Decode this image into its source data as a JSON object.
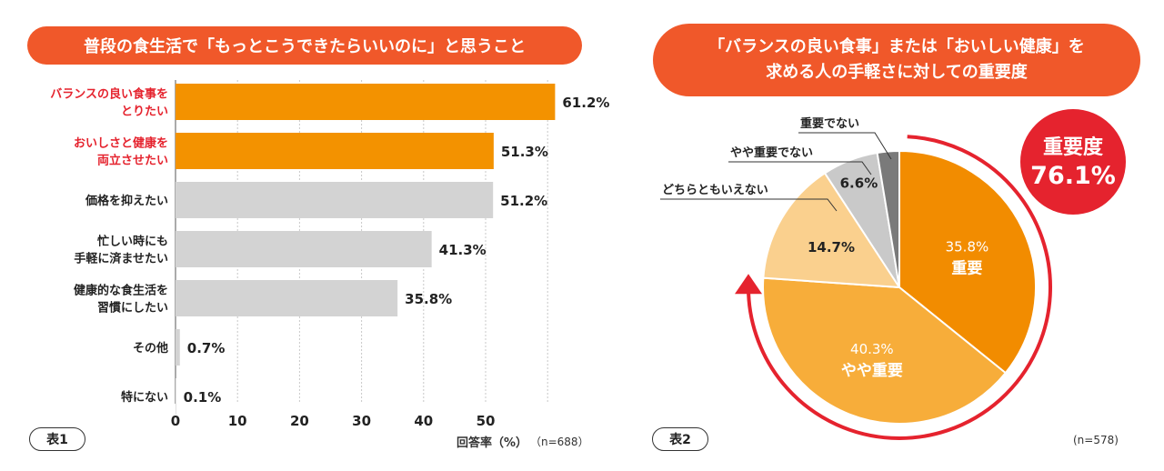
{
  "chart_data": [
    {
      "type": "bar",
      "orientation": "horizontal",
      "title": "普段の食生活で「もっとこうできたらいいのに」と思うこと",
      "categories": [
        [
          "バランスの良い食事を",
          "とりたい"
        ],
        [
          "おいしさと健康を",
          "両立させたい"
        ],
        [
          "価格を抑えたい"
        ],
        [
          "忙しい時にも",
          "手軽に済ませたい"
        ],
        [
          "健康的な食生活を",
          "習慣にしたい"
        ],
        [
          "その他"
        ],
        [
          "特にない"
        ]
      ],
      "values": [
        61.2,
        51.3,
        51.2,
        41.3,
        35.8,
        0.7,
        0.1
      ],
      "value_labels": [
        "61.2%",
        "51.3%",
        "51.2%",
        "41.3%",
        "35.8%",
        "0.7%",
        "0.1%"
      ],
      "highlighted": [
        true,
        true,
        false,
        false,
        false,
        false,
        false
      ],
      "xticks": [
        "0",
        "10",
        "20",
        "30",
        "40",
        "50"
      ],
      "xlim": [
        0,
        60
      ],
      "xlabel": "回答率（%）",
      "sample": "（n=688）",
      "table_tag": "表1",
      "colors": {
        "highlight": "#f39200",
        "normal": "#d3d3d3",
        "highlight_text": "#e5232e"
      }
    },
    {
      "type": "pie",
      "title": [
        "「バランスの良い食事」または「おいしい健康」を",
        "求める人の手軽さに対しての重要度"
      ],
      "slices": [
        {
          "label": "重要",
          "value": 35.8,
          "value_text": "35.8%",
          "color": "#f28c00"
        },
        {
          "label": "やや重要",
          "value": 40.3,
          "value_text": "40.3%",
          "color": "#f7ad3a"
        },
        {
          "label": "どちらともいえない",
          "value": 14.7,
          "value_text": "14.7%",
          "color": "#fad08e"
        },
        {
          "label": "やや重要でない",
          "value": 6.6,
          "value_text": "6.6%",
          "color": "#c9c9c9"
        },
        {
          "label": "重要でない",
          "value": 2.6,
          "value_text": "",
          "color": "#7a7a7a"
        }
      ],
      "callout": {
        "label": "重要度",
        "value": "76.1%",
        "color": "#e5232e"
      },
      "sample": "(n=578)",
      "table_tag": "表2"
    }
  ]
}
